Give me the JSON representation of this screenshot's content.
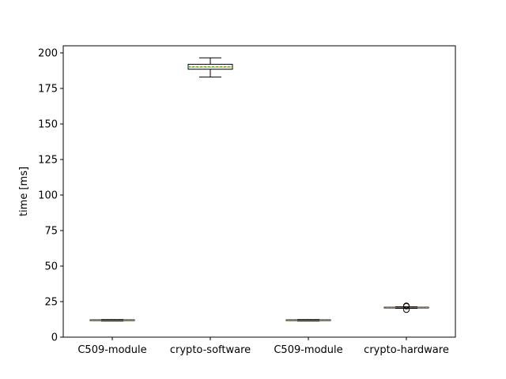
{
  "chart_data": {
    "type": "box",
    "title": "",
    "xlabel": "",
    "ylabel": "time [ms]",
    "ylim": [
      0,
      205
    ],
    "yticks": [
      0,
      25,
      50,
      75,
      100,
      125,
      150,
      175,
      200
    ],
    "ytick_labels": [
      "0",
      "25",
      "50",
      "75",
      "100",
      "125",
      "150",
      "175",
      "200"
    ],
    "grid": false,
    "categories": [
      "C509-module",
      "crypto-software",
      "C509-module",
      "crypto-hardware"
    ],
    "boxes": [
      {
        "whisker_low": 11.3,
        "q1": 11.6,
        "median": 11.9,
        "mean": 11.8,
        "q3": 12.2,
        "whisker_high": 12.4,
        "outliers": []
      },
      {
        "whisker_low": 183.0,
        "q1": 188.5,
        "median": 190.0,
        "mean": 190.2,
        "q3": 192.0,
        "whisker_high": 196.5,
        "outliers": []
      },
      {
        "whisker_low": 11.3,
        "q1": 11.6,
        "median": 11.9,
        "mean": 11.8,
        "q3": 12.2,
        "whisker_high": 12.4,
        "outliers": []
      },
      {
        "whisker_low": 20.3,
        "q1": 20.6,
        "median": 20.9,
        "mean": 20.8,
        "q3": 21.1,
        "whisker_high": 21.4,
        "outliers": [
          19.3,
          21.8,
          22.1
        ]
      }
    ],
    "colors": {
      "box": "#000000",
      "median": "#ff7f0e",
      "mean": "#2ca02c",
      "axis": "#000000",
      "background": "#ffffff"
    }
  }
}
